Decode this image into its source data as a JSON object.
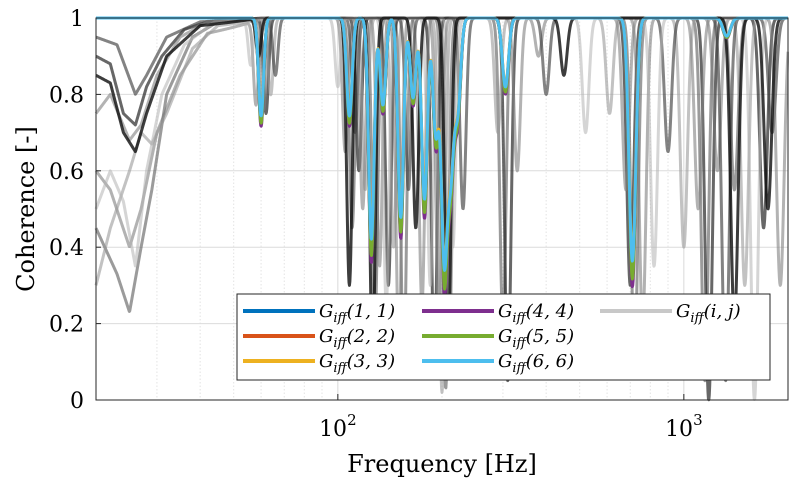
{
  "chart_data": {
    "type": "line",
    "xscale": "log",
    "xlim": [
      20,
      2000
    ],
    "ylim": [
      0,
      1
    ],
    "xlabel": "Frequency [Hz]",
    "ylabel": "Coherence [-]",
    "xticks": [
      {
        "value": 100,
        "base": "10",
        "exp": "2"
      },
      {
        "value": 1000,
        "base": "10",
        "exp": "3"
      }
    ],
    "yticks": [
      {
        "value": 0,
        "label": "0"
      },
      {
        "value": 0.2,
        "label": "0.2"
      },
      {
        "value": 0.4,
        "label": "0.4"
      },
      {
        "value": 0.6,
        "label": "0.6"
      },
      {
        "value": 0.8,
        "label": "0.8"
      },
      {
        "value": 1,
        "label": "1"
      }
    ],
    "grid": true,
    "legend_position": "bottom-right",
    "legend": [
      {
        "label": "G_iff(1,1)",
        "color": "#0072bd"
      },
      {
        "label": "G_iff(2,2)",
        "color": "#d95319"
      },
      {
        "label": "G_iff(3,3)",
        "color": "#edb120"
      },
      {
        "label": "G_iff(4,4)",
        "color": "#7e2f8e"
      },
      {
        "label": "G_iff(5,5)",
        "color": "#77ac30"
      },
      {
        "label": "G_iff(6,6)",
        "color": "#4dbeee"
      },
      {
        "label": "G_iff(i,j)",
        "color": "#c8c8c8"
      }
    ],
    "diagonal_dips": [
      {
        "f": 60,
        "min": 0.73
      },
      {
        "f": 108,
        "min": 0.73
      },
      {
        "f": 125,
        "min": 0.39
      },
      {
        "f": 135,
        "min": 0.76
      },
      {
        "f": 152,
        "min": 0.45
      },
      {
        "f": 165,
        "min": 0.78
      },
      {
        "f": 178,
        "min": 0.5
      },
      {
        "f": 192,
        "min": 0.68
      },
      {
        "f": 203,
        "min": 0.35
      },
      {
        "f": 212,
        "min": 0.6
      },
      {
        "f": 222,
        "min": 0.75
      },
      {
        "f": 305,
        "min": 0.81
      },
      {
        "f": 710,
        "min": 0.33
      },
      {
        "f": 1330,
        "min": 0.95
      }
    ],
    "diagonal_series": [
      {
        "name": "G_iff(1,1)",
        "color": "#0072bd",
        "depth_scale": 1.0
      },
      {
        "name": "G_iff(2,2)",
        "color": "#d95319",
        "depth_scale": 0.97
      },
      {
        "name": "G_iff(3,3)",
        "color": "#edb120",
        "depth_scale": 0.93
      },
      {
        "name": "G_iff(4,4)",
        "color": "#7e2f8e",
        "depth_scale": 1.05
      },
      {
        "name": "G_iff(5,5)",
        "color": "#77ac30",
        "depth_scale": 1.02
      },
      {
        "name": "G_iff(6,6)",
        "color": "#4dbeee",
        "depth_scale": 0.95
      }
    ],
    "offdiagonal_curves": [
      {
        "low": [
          [
            20,
            0.45
          ],
          [
            23,
            0.33
          ],
          [
            25,
            0.23
          ],
          [
            27,
            0.4
          ],
          [
            29,
            0.55
          ],
          [
            32,
            0.8
          ],
          [
            38,
            0.95
          ],
          [
            45,
            0.99
          ]
        ],
        "dips": [
          {
            "f": 60,
            "min": 0.74
          },
          {
            "f": 110,
            "min": 0.45
          },
          {
            "f": 128,
            "min": 0.2
          },
          {
            "f": 155,
            "min": 0.08
          },
          {
            "f": 205,
            "min": 0.03
          },
          {
            "f": 300,
            "min": 0.2
          },
          {
            "f": 720,
            "min": 0.1
          },
          {
            "f": 1150,
            "min": 0.05
          },
          {
            "f": 1400,
            "min": 0.55
          }
        ],
        "gray": 0.35,
        "opacity": 0.6
      },
      {
        "low": [
          [
            20,
            0.9
          ],
          [
            22,
            0.88
          ],
          [
            24,
            0.75
          ],
          [
            26,
            0.72
          ],
          [
            28,
            0.82
          ],
          [
            31,
            0.9
          ],
          [
            36,
            0.97
          ],
          [
            42,
            0.99
          ]
        ],
        "dips": [
          {
            "f": 62,
            "min": 0.75
          },
          {
            "f": 115,
            "min": 0.6
          },
          {
            "f": 140,
            "min": 0.3
          },
          {
            "f": 190,
            "min": 0.1
          },
          {
            "f": 310,
            "min": 0.05
          },
          {
            "f": 700,
            "min": 0.3
          },
          {
            "f": 1180,
            "min": 0.0
          },
          {
            "f": 1700,
            "min": 0.45
          }
        ],
        "gray": 0.15,
        "opacity": 0.7
      },
      {
        "low": [
          [
            20,
            0.6
          ],
          [
            22,
            0.55
          ],
          [
            25,
            0.4
          ],
          [
            27,
            0.5
          ],
          [
            30,
            0.7
          ],
          [
            35,
            0.85
          ],
          [
            42,
            0.96
          ]
        ],
        "dips": [
          {
            "f": 58,
            "min": 0.78
          },
          {
            "f": 105,
            "min": 0.65
          },
          {
            "f": 132,
            "min": 0.35
          },
          {
            "f": 175,
            "min": 0.25
          },
          {
            "f": 210,
            "min": 0.15
          },
          {
            "f": 380,
            "min": 0.9
          },
          {
            "f": 760,
            "min": 0.2
          },
          {
            "f": 1250,
            "min": 0.6
          }
        ],
        "gray": 0.45,
        "opacity": 0.55
      },
      {
        "low": [
          [
            20,
            0.3
          ],
          [
            22,
            0.45
          ],
          [
            25,
            0.6
          ],
          [
            27,
            0.7
          ],
          [
            29,
            0.67
          ],
          [
            32,
            0.75
          ],
          [
            38,
            0.92
          ],
          [
            45,
            0.98
          ]
        ],
        "dips": [
          {
            "f": 64,
            "min": 0.8
          },
          {
            "f": 120,
            "min": 0.55
          },
          {
            "f": 145,
            "min": 0.4
          },
          {
            "f": 200,
            "min": 0.02
          },
          {
            "f": 290,
            "min": 0.7
          },
          {
            "f": 610,
            "min": 0.75
          },
          {
            "f": 1000,
            "min": 0.4
          },
          {
            "f": 1500,
            "min": 0.3
          }
        ],
        "gray": 0.6,
        "opacity": 0.6
      },
      {
        "low": [
          [
            20,
            0.95
          ],
          [
            23,
            0.93
          ],
          [
            26,
            0.8
          ],
          [
            28,
            0.85
          ],
          [
            32,
            0.95
          ],
          [
            40,
            0.99
          ]
        ],
        "dips": [
          {
            "f": 66,
            "min": 0.85
          },
          {
            "f": 112,
            "min": 0.7
          },
          {
            "f": 160,
            "min": 0.55
          },
          {
            "f": 230,
            "min": 0.5
          },
          {
            "f": 400,
            "min": 0.8
          },
          {
            "f": 900,
            "min": 0.65
          },
          {
            "f": 1320,
            "min": 0.05
          },
          {
            "f": 1800,
            "min": 0.7
          }
        ],
        "gray": 0.25,
        "opacity": 0.65
      },
      {
        "low": [
          [
            20,
            0.5
          ],
          [
            22,
            0.6
          ],
          [
            24,
            0.52
          ],
          [
            26,
            0.35
          ],
          [
            28,
            0.6
          ],
          [
            31,
            0.8
          ],
          [
            36,
            0.93
          ],
          [
            44,
            0.99
          ]
        ],
        "dips": [
          {
            "f": 56,
            "min": 0.88
          },
          {
            "f": 100,
            "min": 0.82
          },
          {
            "f": 138,
            "min": 0.25
          },
          {
            "f": 185,
            "min": 0.3
          },
          {
            "f": 215,
            "min": 0.4
          },
          {
            "f": 520,
            "min": 0.7
          },
          {
            "f": 820,
            "min": 0.35
          },
          {
            "f": 1600,
            "min": 0.0
          }
        ],
        "gray": 0.7,
        "opacity": 0.55
      },
      {
        "low": [
          [
            20,
            0.75
          ],
          [
            22,
            0.8
          ],
          [
            25,
            0.68
          ],
          [
            27,
            0.72
          ],
          [
            30,
            0.85
          ],
          [
            35,
            0.95
          ],
          [
            42,
            0.99
          ]
        ],
        "dips": [
          {
            "f": 61,
            "min": 0.76
          },
          {
            "f": 118,
            "min": 0.5
          },
          {
            "f": 150,
            "min": 0.15
          },
          {
            "f": 196,
            "min": 0.2
          },
          {
            "f": 330,
            "min": 0.6
          },
          {
            "f": 680,
            "min": 0.55
          },
          {
            "f": 1100,
            "min": 0.5
          },
          {
            "f": 1900,
            "min": 0.3
          }
        ],
        "gray": 0.5,
        "opacity": 0.6
      },
      {
        "low": [
          [
            20,
            0.85
          ],
          [
            22,
            0.83
          ],
          [
            24,
            0.7
          ],
          [
            26,
            0.65
          ],
          [
            28,
            0.75
          ],
          [
            32,
            0.9
          ],
          [
            40,
            0.98
          ]
        ],
        "dips": [
          {
            "f": 59,
            "min": 0.9
          },
          {
            "f": 108,
            "min": 0.3
          },
          {
            "f": 126,
            "min": 0.1
          },
          {
            "f": 168,
            "min": 0.45
          },
          {
            "f": 208,
            "min": 0.1
          },
          {
            "f": 450,
            "min": 0.85
          },
          {
            "f": 1400,
            "min": 0.2
          },
          {
            "f": 1750,
            "min": 0.5
          }
        ],
        "gray": 0.05,
        "opacity": 0.8
      }
    ]
  }
}
